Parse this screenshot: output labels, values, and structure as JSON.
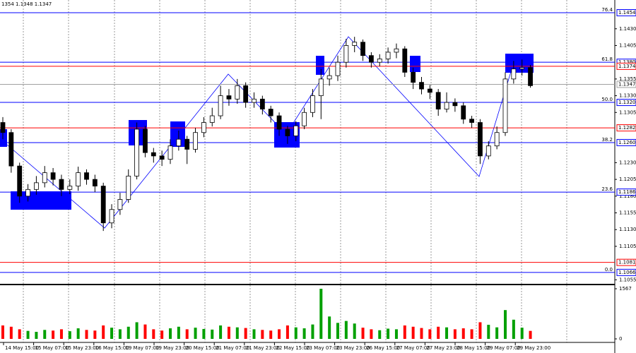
{
  "chart_data": {
    "type": "candlestick",
    "header": "1354 1.1348 1.1347",
    "ylim": [
      1.1049,
      1.1473
    ],
    "yticks": [
      {
        "value": 1.143,
        "label": "1.1430"
      },
      {
        "value": 1.1405,
        "label": "1.1405"
      },
      {
        "value": 1.1355,
        "label": "1.1355"
      },
      {
        "value": 1.133,
        "label": "1.1330"
      },
      {
        "value": 1.1305,
        "label": "1.1305"
      },
      {
        "value": 1.123,
        "label": "1.1230"
      },
      {
        "value": 1.1205,
        "label": "1.1205"
      },
      {
        "value": 1.118,
        "label": "1.1180"
      },
      {
        "value": 1.1155,
        "label": "1.1155"
      },
      {
        "value": 1.113,
        "label": "1.1130"
      },
      {
        "value": 1.1105,
        "label": "1.1105"
      },
      {
        "value": 1.1055,
        "label": "1.1055"
      }
    ],
    "time_labels": [
      "14 May 15:00",
      "15 May 07:00",
      "15 May 23:00",
      "16 May 15:00",
      "19 May 07:00",
      "19 May 23:00",
      "20 May 15:00",
      "21 May 07:00",
      "21 May 23:00",
      "22 May 15:00",
      "23 May 07:00",
      "23 May 23:00",
      "26 May 15:00",
      "27 May 07:00",
      "27 May 23:00",
      "28 May 15:00",
      "29 May 07:00",
      "29 May 23:00"
    ],
    "up_color": "#ffffff",
    "down_color": "#000000",
    "open": [
      1.129,
      1.1275,
      1.1225,
      1.118,
      1.119,
      1.12,
      1.1215,
      1.1205,
      1.119,
      1.1195,
      1.1215,
      1.1205,
      1.1195,
      1.114,
      1.116,
      1.1175,
      1.121,
      1.128,
      1.1245,
      1.124,
      1.1235,
      1.1255,
      1.1265,
      1.125,
      1.1275,
      1.129,
      1.13,
      1.133,
      1.1325,
      1.1345,
      1.132,
      1.1325,
      1.131,
      1.13,
      1.128,
      1.127,
      1.1285,
      1.1305,
      1.133,
      1.1355,
      1.136,
      1.138,
      1.1405,
      1.141,
      1.139,
      1.138,
      1.1385,
      1.1395,
      1.14,
      1.1365,
      1.135,
      1.134,
      1.1335,
      1.131,
      1.132,
      1.1315,
      1.1295,
      1.129,
      1.124,
      1.1255,
      1.1275,
      1.1355,
      1.137,
      1.1372
    ],
    "high": [
      1.1298,
      1.128,
      1.123,
      1.1198,
      1.121,
      1.1225,
      1.1222,
      1.1212,
      1.1205,
      1.1224,
      1.122,
      1.1212,
      1.12,
      1.1168,
      1.1185,
      1.122,
      1.129,
      1.1285,
      1.1252,
      1.1248,
      1.1265,
      1.1278,
      1.127,
      1.1282,
      1.1298,
      1.1312,
      1.1345,
      1.134,
      1.1355,
      1.135,
      1.1335,
      1.133,
      1.1315,
      1.1305,
      1.1285,
      1.1292,
      1.1312,
      1.134,
      1.137,
      1.1372,
      1.139,
      1.1415,
      1.1418,
      1.1414,
      1.1395,
      1.1392,
      1.1402,
      1.1408,
      1.1404,
      1.1372,
      1.1358,
      1.1346,
      1.134,
      1.1335,
      1.1326,
      1.132,
      1.13,
      1.1295,
      1.1262,
      1.1284,
      1.1365,
      1.1382,
      1.1384,
      1.1376
    ],
    "low": [
      1.1265,
      1.1215,
      1.117,
      1.1172,
      1.1182,
      1.1193,
      1.1196,
      1.118,
      1.1183,
      1.1188,
      1.1197,
      1.1186,
      1.1128,
      1.1132,
      1.1152,
      1.117,
      1.1205,
      1.1238,
      1.123,
      1.1225,
      1.1228,
      1.1248,
      1.1228,
      1.1245,
      1.1268,
      1.1284,
      1.1295,
      1.1315,
      1.1318,
      1.1312,
      1.1312,
      1.1302,
      1.129,
      1.127,
      1.1258,
      1.1262,
      1.128,
      1.1298,
      1.1295,
      1.1345,
      1.1352,
      1.1372,
      1.1395,
      1.1382,
      1.1372,
      1.1374,
      1.1378,
      1.1386,
      1.1358,
      1.134,
      1.1332,
      1.1325,
      1.13,
      1.1305,
      1.1306,
      1.1288,
      1.1282,
      1.1228,
      1.1235,
      1.125,
      1.127,
      1.1348,
      1.136,
      1.1342
    ],
    "close": [
      1.1275,
      1.1225,
      1.118,
      1.119,
      1.12,
      1.1215,
      1.1205,
      1.119,
      1.1195,
      1.1215,
      1.1205,
      1.1195,
      1.114,
      1.116,
      1.1175,
      1.121,
      1.128,
      1.1245,
      1.124,
      1.1235,
      1.1255,
      1.1265,
      1.125,
      1.1275,
      1.129,
      1.13,
      1.133,
      1.1325,
      1.1345,
      1.132,
      1.1325,
      1.131,
      1.13,
      1.128,
      1.127,
      1.1285,
      1.1305,
      1.133,
      1.1355,
      1.136,
      1.138,
      1.1405,
      1.141,
      1.139,
      1.138,
      1.1385,
      1.1395,
      1.14,
      1.1365,
      1.135,
      1.134,
      1.1335,
      1.131,
      1.132,
      1.1315,
      1.1295,
      1.129,
      1.124,
      1.1255,
      1.1275,
      1.1355,
      1.137,
      1.1372,
      1.1345
    ],
    "volume": {
      "ylim": [
        0,
        1567
      ],
      "yticks": [
        1567,
        0
      ],
      "up_color": "#00a000",
      "down_color": "#ff0000",
      "values": [
        420,
        380,
        300,
        250,
        220,
        280,
        260,
        300,
        240,
        330,
        280,
        260,
        420,
        350,
        300,
        380,
        520,
        450,
        300,
        260,
        330,
        380,
        300,
        350,
        310,
        290,
        420,
        380,
        360,
        340,
        300,
        280,
        260,
        300,
        420,
        360,
        330,
        450,
        1567,
        700,
        500,
        560,
        480,
        350,
        300,
        270,
        320,
        300,
        420,
        380,
        340,
        300,
        380,
        360,
        300,
        330,
        300,
        520,
        440,
        360,
        900,
        600,
        350,
        250
      ]
    },
    "levels": [
      {
        "value": 1.1454,
        "label": "1.1454",
        "color": "#0000ff",
        "fib": "76.4"
      },
      {
        "value": 1.138,
        "label": "1.1380",
        "color": "#0000ff",
        "fib": "61.8"
      },
      {
        "value": 1.1374,
        "label": "1.1374",
        "color": "#ff0000"
      },
      {
        "value": 1.1347,
        "label": "1.1347",
        "color": "#a0a0a0"
      },
      {
        "value": 1.132,
        "label": "1.1320",
        "color": "#0000ff",
        "fib": "50.0"
      },
      {
        "value": 1.1282,
        "label": "1.1282",
        "color": "#ff0000"
      },
      {
        "value": 1.126,
        "label": "1.1260",
        "color": "#0000ff",
        "fib": "38.2"
      },
      {
        "value": 1.1186,
        "label": "1.1186",
        "color": "#0000ff",
        "fib": "23.6"
      },
      {
        "value": 1.1081,
        "label": "1.1081",
        "color": "#ff0000"
      },
      {
        "value": 1.1066,
        "label": "1.1066",
        "color": "#0000ff",
        "fib": "0.0"
      }
    ]
  }
}
